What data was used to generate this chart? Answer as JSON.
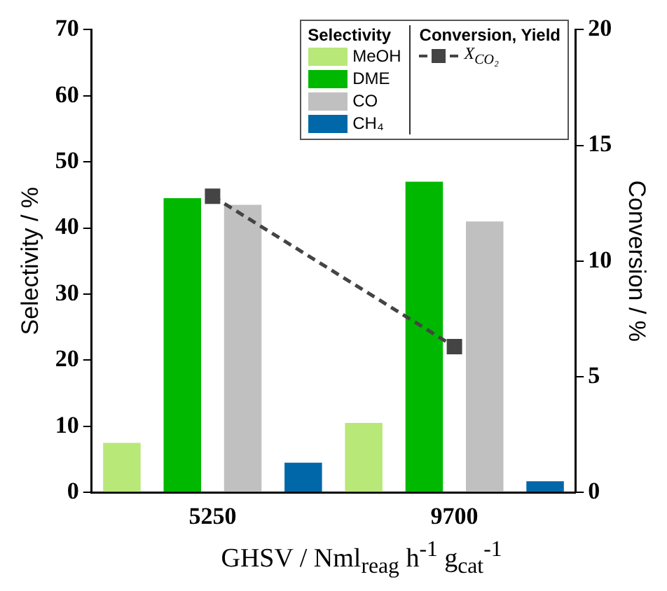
{
  "chart_data": {
    "type": "bar",
    "xlabel": "GHSV / Nml$_{reag}$ h$^{-1}$ g$_{cat}$$^{-1}$",
    "ylabel": "Selectivity / %",
    "y2label": "Conversion / %",
    "legend_title": "Selectivity",
    "annotations": [
      "Conversion, Yield"
    ],
    "categories": [
      "5250",
      "9700"
    ],
    "series": [
      {
        "name": "MeOH",
        "color": "#b8e878",
        "values": [
          7.5,
          10.5
        ]
      },
      {
        "name": "DME",
        "color": "#00b800",
        "values": [
          44.5,
          47
        ]
      },
      {
        "name": "CO",
        "color": "#c0c0c0",
        "values": [
          43.5,
          41
        ]
      },
      {
        "name": "CH₄",
        "color": "#0068a8",
        "values": [
          4.5,
          1.7
        ]
      },
      {
        "name": "X$_{CO₂}$",
        "type": "line",
        "axis": "y2",
        "color": "#444444",
        "marker": "square",
        "line_style": "dashed",
        "values": [
          12.8,
          6.3
        ]
      }
    ],
    "ylim": [
      0,
      70
    ],
    "yticks": [
      0,
      10,
      20,
      30,
      40,
      50,
      60,
      70
    ],
    "y2lim": [
      0,
      20
    ],
    "y2ticks": [
      0,
      5,
      10,
      15,
      20
    ],
    "grid": false,
    "legend": "top right"
  }
}
